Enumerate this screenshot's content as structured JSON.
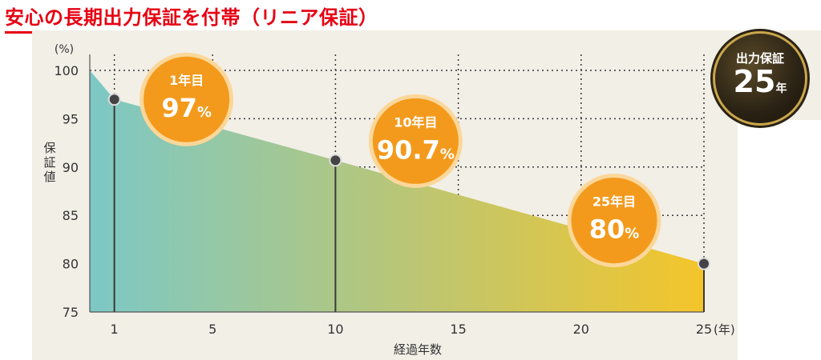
{
  "title": "安心の長期出力保証を付帯（リニア保証）",
  "badge": {
    "line1": "出力保証",
    "years": "25",
    "unit": "年"
  },
  "chart_data": {
    "type": "area",
    "title": "",
    "ylabel": "保証値",
    "yunit": "(%)",
    "xlabel": "経過年数",
    "xunit": "(年)",
    "ylim": [
      75,
      100
    ],
    "xlim": [
      0,
      25
    ],
    "yticks": [
      100,
      95,
      90,
      85,
      80,
      75
    ],
    "xticks": [
      1,
      5,
      10,
      15,
      20,
      25
    ],
    "grid": true,
    "series": [
      {
        "x": [
          0,
          1,
          10,
          25
        ],
        "y": [
          100,
          97,
          90.7,
          80
        ]
      }
    ],
    "highlights": [
      {
        "x": 1,
        "y": 97,
        "label": "1年目",
        "value": "97",
        "suffix": "%"
      },
      {
        "x": 10,
        "y": 90.7,
        "label": "10年目",
        "value": "90.7",
        "suffix": "%"
      },
      {
        "x": 25,
        "y": 80,
        "label": "25年目",
        "value": "80",
        "suffix": "%"
      }
    ],
    "colors": {
      "start": "#7cc8c6",
      "end": "#f4c52a",
      "bubble": "#f39a1c",
      "bubbleBorder": "#fbd79a"
    }
  }
}
